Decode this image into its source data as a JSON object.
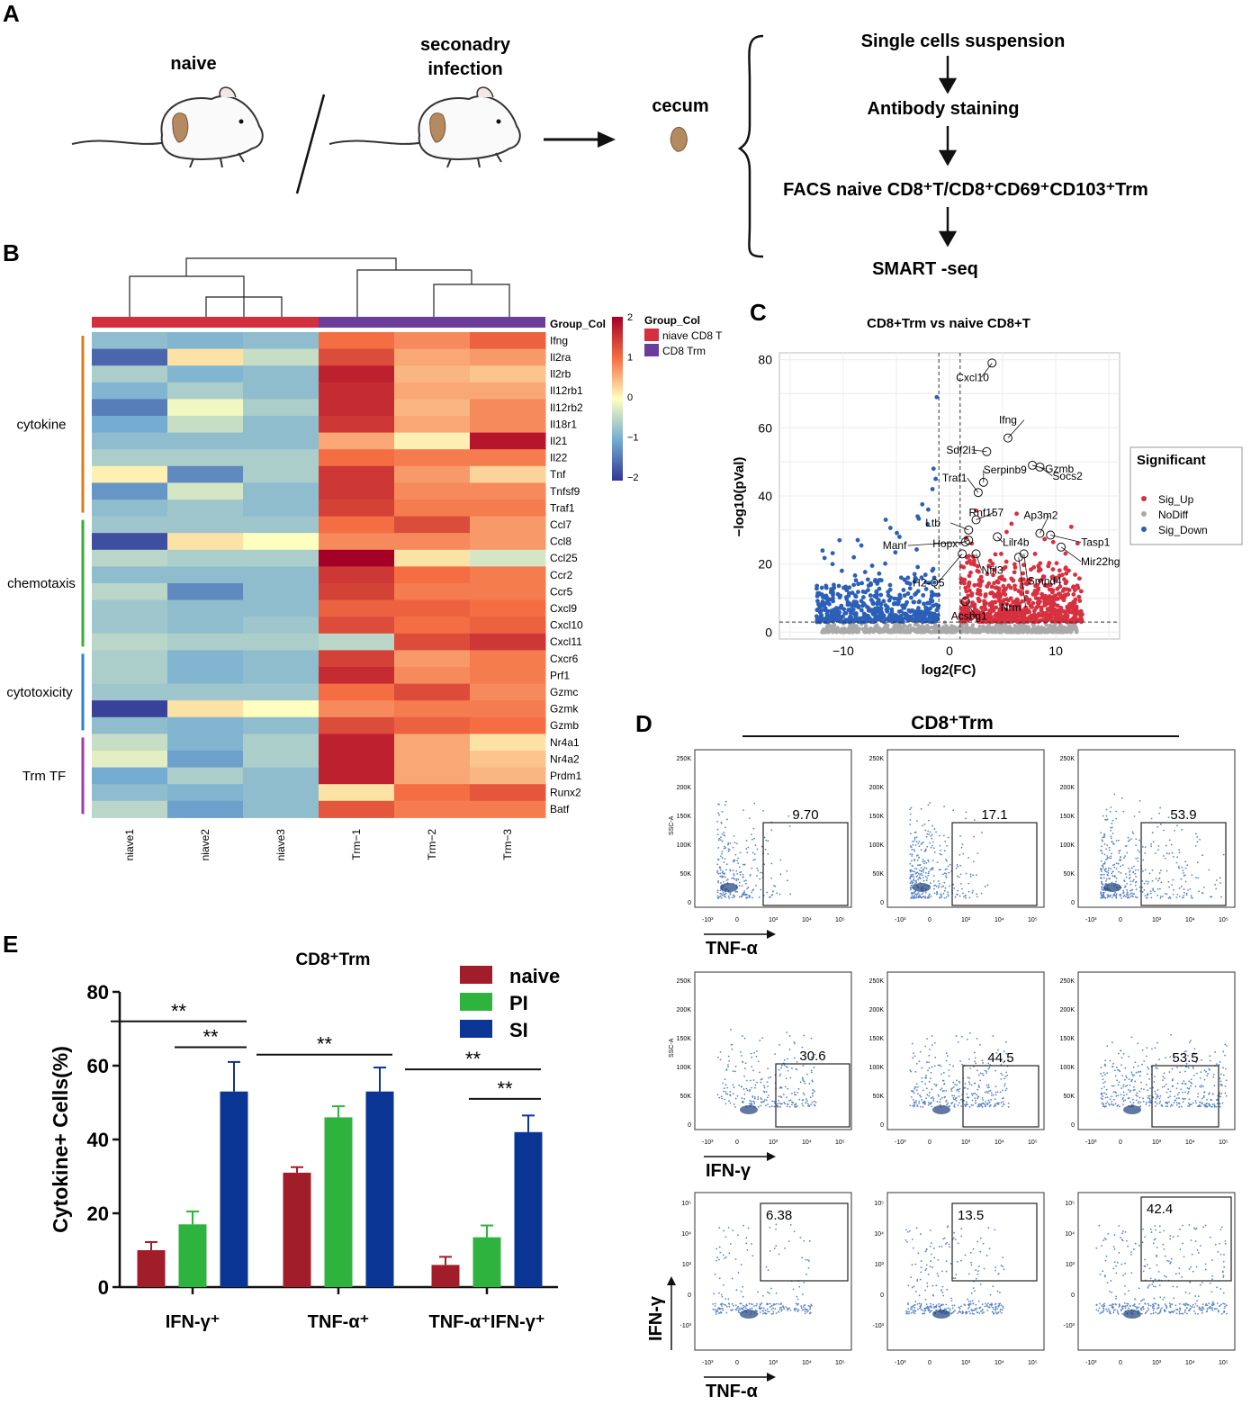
{
  "panel_letters": {
    "a": "A",
    "b": "B",
    "c": "C",
    "d": "D",
    "e": "E"
  },
  "panelA": {
    "naive_label": "naive",
    "infection_line1": "seconadry",
    "infection_line2": "infection",
    "cecum_label": "cecum",
    "steps": [
      "Single cells suspension",
      "Antibody staining",
      "FACS naive CD8⁺T/CD8⁺CD69⁺CD103⁺Trm",
      "SMART -seq"
    ]
  },
  "panelB": {
    "group_label": "Group_Col",
    "legend_title": "Group_Col",
    "legend_items": [
      "niave CD8 T",
      "CD8 Trm"
    ],
    "group_colors": [
      "#d32f3f",
      "#6a3d9a"
    ],
    "scale_ticks": [
      "2",
      "1",
      "0",
      "−1",
      "−2"
    ],
    "samples": [
      "niave1",
      "niave2",
      "niave3",
      "Trm−1",
      "Trm−2",
      "Trm−3"
    ],
    "categories": [
      {
        "name": "cytokine",
        "color": "#e07b1a"
      },
      {
        "name": "chemotaxis",
        "color": "#3aaa3a"
      },
      {
        "name": "cytotoxicity",
        "color": "#2f7fd0"
      },
      {
        "name": "Trm TF",
        "color": "#a23aa6"
      }
    ],
    "genes": [
      "Ifng",
      "Il2ra",
      "Il2rb",
      "Il12rb1",
      "Il12rb2",
      "Il18r1",
      "Il21",
      "Il22",
      "Tnf",
      "Tnfsf9",
      "Traf1",
      "Ccl7",
      "Ccl8",
      "Ccl25",
      "Ccr2",
      "Ccr5",
      "Cxcl9",
      "Cxcl10",
      "Cxcl11",
      "Cxcr6",
      "Prf1",
      "Gzmc",
      "Gzmk",
      "Gzmb",
      "Nr4a1",
      "Nr4a2",
      "Prdm1",
      "Runx2",
      "Batf"
    ],
    "values": [
      [
        -0.8,
        -0.9,
        -0.8,
        1.0,
        0.8,
        1.1
      ],
      [
        -1.6,
        0.2,
        -0.4,
        1.3,
        0.6,
        0.7
      ],
      [
        -0.6,
        -0.9,
        -0.8,
        1.7,
        0.5,
        0.4
      ],
      [
        -0.9,
        -0.6,
        -0.8,
        1.6,
        0.6,
        0.6
      ],
      [
        -1.4,
        -0.1,
        -0.6,
        1.6,
        0.5,
        0.8
      ],
      [
        -1.0,
        -0.4,
        -0.8,
        1.5,
        0.6,
        0.8
      ],
      [
        -0.8,
        -0.8,
        -0.8,
        0.6,
        0.1,
        1.8
      ],
      [
        -0.6,
        -0.6,
        -0.6,
        1.0,
        0.9,
        0.9
      ],
      [
        0.1,
        -1.3,
        -0.6,
        1.5,
        0.7,
        0.3
      ],
      [
        -1.2,
        -0.3,
        -0.8,
        1.5,
        0.8,
        0.8
      ],
      [
        -0.8,
        -0.7,
        -0.8,
        1.4,
        0.9,
        0.9
      ],
      [
        -0.7,
        -0.7,
        -0.7,
        1.0,
        1.3,
        0.7
      ],
      [
        -1.8,
        0.2,
        0.0,
        0.8,
        0.8,
        0.7
      ],
      [
        -0.5,
        -0.6,
        -0.6,
        2.0,
        0.2,
        -0.3
      ],
      [
        -0.8,
        -0.8,
        -0.8,
        1.5,
        1.0,
        0.9
      ],
      [
        -0.5,
        -1.3,
        -0.8,
        1.4,
        0.9,
        0.9
      ],
      [
        -0.7,
        -0.8,
        -0.8,
        1.1,
        1.1,
        1.0
      ],
      [
        -0.7,
        -0.8,
        -0.7,
        1.3,
        1.0,
        1.1
      ],
      [
        -0.5,
        -0.6,
        -0.6,
        -0.5,
        1.3,
        1.5
      ],
      [
        -0.6,
        -0.9,
        -0.8,
        1.4,
        0.7,
        0.9
      ],
      [
        -0.6,
        -0.9,
        -0.8,
        1.6,
        0.8,
        0.9
      ],
      [
        -0.7,
        -0.7,
        -0.7,
        1.0,
        1.3,
        0.8
      ],
      [
        -1.9,
        0.2,
        0.0,
        0.8,
        0.9,
        0.9
      ],
      [
        -0.8,
        -0.9,
        -0.8,
        1.3,
        1.1,
        1.0
      ],
      [
        -0.4,
        -0.9,
        -0.6,
        1.7,
        0.6,
        0.2
      ],
      [
        -0.2,
        -1.1,
        -0.6,
        1.7,
        0.6,
        0.4
      ],
      [
        -1.0,
        -0.6,
        -0.8,
        1.7,
        0.6,
        0.5
      ],
      [
        -0.8,
        -0.9,
        -0.8,
        0.2,
        1.0,
        1.2
      ],
      [
        -0.5,
        -1.1,
        -0.8,
        1.2,
        0.9,
        0.9
      ]
    ]
  },
  "panelC": {
    "chart_data": {
      "type": "scatter",
      "title": "CD8+Trm vs naive CD8+T",
      "xlabel": "log2(FC)",
      "ylabel": "−log10(pVal)",
      "xlim": [
        -16,
        16
      ],
      "ylim": [
        -2,
        82
      ],
      "xticks": [
        -10,
        0,
        10
      ],
      "xtick_labels": [
        "−10",
        "0",
        "10"
      ],
      "yticks": [
        0,
        20,
        40,
        60,
        80
      ],
      "thresholds": {
        "log2fc": [
          -1,
          1
        ],
        "neg_log10_p": 3
      },
      "legend_title": "Significant",
      "legend": [
        {
          "name": "Sig_Up",
          "color": "#d7303f"
        },
        {
          "name": "NoDiff",
          "color": "#a9a9a9"
        },
        {
          "name": "Sig_Down",
          "color": "#2b5fb8"
        }
      ],
      "labeled_genes": [
        {
          "gene": "Cxcl10",
          "x": 4.0,
          "y": 79
        },
        {
          "gene": "Ifng",
          "x": 5.5,
          "y": 57
        },
        {
          "gene": "Sdf2l1",
          "x": 3.5,
          "y": 53
        },
        {
          "gene": "Gzmb",
          "x": 7.8,
          "y": 49
        },
        {
          "gene": "Socs2",
          "x": 8.5,
          "y": 48.5
        },
        {
          "gene": "Traf1",
          "x": 2.7,
          "y": 41
        },
        {
          "gene": "Serpinb9",
          "x": 3.2,
          "y": 44
        },
        {
          "gene": "Ap3m2",
          "x": 8.5,
          "y": 29
        },
        {
          "gene": "Ltb",
          "x": 1.8,
          "y": 30
        },
        {
          "gene": "Rnf157",
          "x": 2.5,
          "y": 33
        },
        {
          "gene": "Tasp1",
          "x": 9.5,
          "y": 28.5
        },
        {
          "gene": "Lilr4b",
          "x": 4.5,
          "y": 28
        },
        {
          "gene": "Manf",
          "x": 1.5,
          "y": 26.5
        },
        {
          "gene": "Hopx",
          "x": 1.8,
          "y": 27
        },
        {
          "gene": "Mir22hg",
          "x": 10.5,
          "y": 25
        },
        {
          "gene": "H2-Q5",
          "x": 1.2,
          "y": 23
        },
        {
          "gene": "Nfil3",
          "x": 2.5,
          "y": 23
        },
        {
          "gene": "Smpd4",
          "x": 7.0,
          "y": 23
        },
        {
          "gene": "Acsbg1",
          "x": 1.5,
          "y": 9
        },
        {
          "gene": "Nrm",
          "x": 6.5,
          "y": 22
        }
      ]
    }
  },
  "panelD": {
    "title": "CD8⁺Trm",
    "rows": [
      {
        "xaxis": "TNF-α",
        "yaxis": "SSC-A",
        "values": [
          "9.70",
          "17.1",
          "53.9"
        ]
      },
      {
        "xaxis": "IFN-γ",
        "yaxis": "SSC-A",
        "values": [
          "30.6",
          "44.5",
          "53.5"
        ]
      },
      {
        "xaxis": "TNF-α",
        "yaxis": "IFN-γ",
        "values": [
          "6.38",
          "13.5",
          "42.4"
        ]
      }
    ],
    "ssc_ticks": [
      "250K",
      "200K",
      "150K",
      "100K",
      "50K",
      "0"
    ],
    "log_ticks": [
      "-10³",
      "0",
      "10³",
      "10⁴",
      "10⁵"
    ]
  },
  "panelE": {
    "chart_data": {
      "type": "bar",
      "title": "CD8⁺Trm",
      "ylabel": "Cytokine+ Cells(%)",
      "ylim": [
        0,
        80
      ],
      "yticks": [
        0,
        20,
        40,
        60,
        80
      ],
      "categories": [
        "IFN-γ⁺",
        "TNF-α⁺",
        "TNF-α⁺IFN-γ⁺"
      ],
      "series": [
        {
          "name": "naive",
          "color": "#a11d2a",
          "values": [
            10,
            31,
            6
          ],
          "errors": [
            2.2,
            1.5,
            2.2
          ]
        },
        {
          "name": "PI",
          "color": "#2eb33e",
          "values": [
            17,
            46,
            13.5
          ],
          "errors": [
            3.5,
            3.0,
            3.2
          ]
        },
        {
          "name": "SI",
          "color": "#0b3594",
          "values": [
            53,
            53,
            42
          ],
          "errors": [
            8,
            6.5,
            4.5
          ]
        }
      ],
      "significance": [
        {
          "group": 0,
          "from": 0,
          "to": 2,
          "label": "**",
          "y": 72
        },
        {
          "group": 0,
          "from": 1,
          "to": 2,
          "label": "**",
          "y": 65
        },
        {
          "group": 1,
          "from": 0,
          "to": 2,
          "label": "**",
          "y": 63
        },
        {
          "group": 2,
          "from": 0,
          "to": 2,
          "label": "**",
          "y": 59
        },
        {
          "group": 2,
          "from": 1,
          "to": 2,
          "label": "**",
          "y": 51
        }
      ]
    }
  }
}
